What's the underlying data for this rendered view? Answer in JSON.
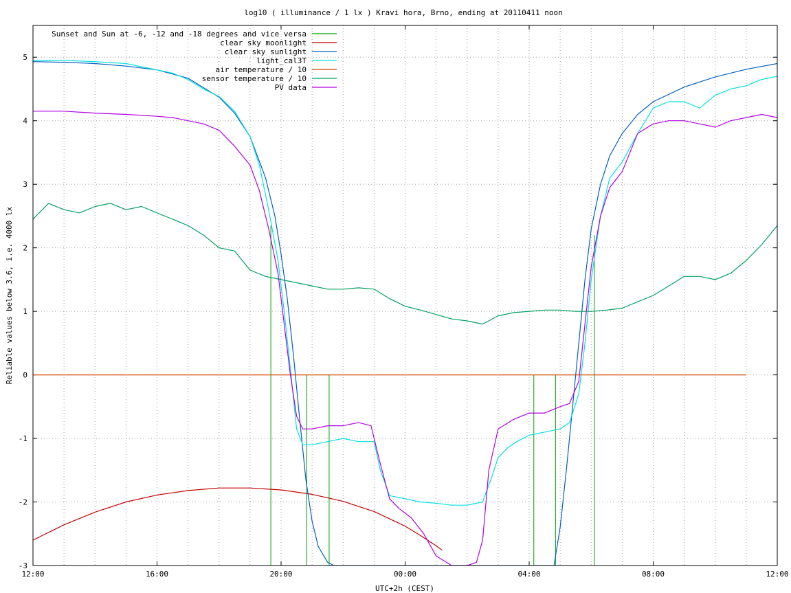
{
  "chart_data": {
    "type": "line",
    "title": "log10 ( illuminance / 1 lx ) Kravi hora, Brno, ending at 20110411 noon",
    "xlabel": "UTC+2h (CEST)",
    "ylabel": "Reliable values below 3.6, i.e. 4000 lx",
    "x_unit": "hours since 12:00 of previous day",
    "xlim": [
      0,
      24
    ],
    "ylim": [
      -3,
      5.5
    ],
    "x_ticks": [
      {
        "value": 0,
        "label": "12:00"
      },
      {
        "value": 4,
        "label": "16:00"
      },
      {
        "value": 8,
        "label": "20:00"
      },
      {
        "value": 12,
        "label": "00:00"
      },
      {
        "value": 16,
        "label": "04:00"
      },
      {
        "value": 20,
        "label": "08:00"
      },
      {
        "value": 24,
        "label": "12:00"
      }
    ],
    "y_ticks": [
      {
        "value": -3,
        "label": "-3"
      },
      {
        "value": -2,
        "label": "-2"
      },
      {
        "value": -1,
        "label": "-1"
      },
      {
        "value": 0,
        "label": "0"
      },
      {
        "value": 1,
        "label": "1"
      },
      {
        "value": 2,
        "label": "2"
      },
      {
        "value": 3,
        "label": "3"
      },
      {
        "value": 4,
        "label": "4"
      },
      {
        "value": 5,
        "label": "5"
      }
    ],
    "grid": true,
    "legend_position": "top-left",
    "series": [
      {
        "name": "Sunset and Sun at -6, -12 and -18 degrees and vice versa",
        "color": "#00a000",
        "style": "impulses",
        "x": [
          7.67,
          8.83,
          9.55,
          16.15,
          16.85,
          18.1
        ],
        "y": [
          2.35,
          0,
          0,
          0,
          0,
          2.2
        ]
      },
      {
        "name": "clear sky moonlight",
        "color": "#c00000",
        "x": [
          0,
          1,
          2,
          3,
          4,
          5,
          6,
          7,
          8,
          9,
          10,
          11,
          12,
          12.5,
          13,
          13.2
        ],
        "y": [
          -2.6,
          -2.36,
          -2.16,
          -2.0,
          -1.89,
          -1.82,
          -1.78,
          -1.78,
          -1.81,
          -1.88,
          -1.99,
          -2.15,
          -2.38,
          -2.53,
          -2.69,
          -2.76
        ]
      },
      {
        "name": "clear sky sunlight",
        "color": "#0060c0",
        "x": [
          0,
          1,
          2,
          3,
          4,
          5,
          6,
          6.5,
          7,
          7.5,
          7.8,
          8.0,
          8.2,
          8.4,
          8.6,
          8.8,
          9.0,
          9.2,
          9.5,
          9.7,
          16.8,
          17.0,
          17.2,
          17.4,
          17.6,
          17.8,
          18.0,
          18.3,
          18.6,
          19,
          19.5,
          20,
          21,
          22,
          23,
          24
        ],
        "y": [
          4.93,
          4.92,
          4.9,
          4.86,
          4.8,
          4.67,
          4.37,
          4.12,
          3.75,
          3.1,
          2.5,
          1.9,
          1.2,
          0.3,
          -0.7,
          -1.65,
          -2.3,
          -2.7,
          -2.95,
          -3.0,
          -3.0,
          -2.4,
          -1.5,
          -0.5,
          0.5,
          1.5,
          2.3,
          3.0,
          3.45,
          3.8,
          4.1,
          4.3,
          4.53,
          4.69,
          4.81,
          4.9
        ]
      },
      {
        "name": "light_cal3T",
        "color": "#00e0e0",
        "x": [
          0,
          0.5,
          1,
          2,
          3,
          4,
          4.5,
          5,
          5.5,
          6,
          6.5,
          7,
          7.3,
          7.6,
          7.9,
          8.1,
          8.3,
          8.5,
          8.7,
          9.0,
          9.5,
          10,
          10.5,
          11,
          11.2,
          11.5,
          12,
          12.5,
          13,
          13.5,
          14,
          14.5,
          14.8,
          15,
          15.3,
          15.6,
          16,
          16.5,
          17,
          17.3,
          17.6,
          17.8,
          18,
          18.3,
          18.6,
          19,
          19.5,
          20,
          20.5,
          21,
          21.5,
          22,
          22.5,
          23,
          23.5,
          24
        ],
        "y": [
          4.95,
          4.95,
          4.95,
          4.93,
          4.9,
          4.8,
          4.75,
          4.65,
          4.5,
          4.38,
          4.15,
          3.75,
          3.3,
          2.6,
          1.8,
          1.0,
          0.1,
          -0.85,
          -1.1,
          -1.1,
          -1.05,
          -1.0,
          -1.05,
          -1.05,
          -1.5,
          -1.9,
          -1.95,
          -2.0,
          -2.02,
          -2.05,
          -2.05,
          -2.0,
          -1.6,
          -1.3,
          -1.15,
          -1.05,
          -0.95,
          -0.9,
          -0.85,
          -0.75,
          -0.3,
          0.5,
          1.5,
          2.5,
          3.1,
          3.35,
          3.8,
          4.2,
          4.3,
          4.3,
          4.2,
          4.4,
          4.5,
          4.55,
          4.65,
          4.7
        ]
      },
      {
        "name": "air temperature / 10",
        "color": "#d04000",
        "x": [
          0,
          23
        ],
        "y": [
          0,
          0
        ]
      },
      {
        "name": "sensor temperature / 10",
        "color": "#00a060",
        "x": [
          0,
          0.5,
          1,
          1.5,
          2,
          2.5,
          3,
          3.5,
          4,
          4.5,
          5,
          5.5,
          6,
          6.5,
          7,
          7.5,
          8,
          8.5,
          9,
          9.5,
          10,
          10.5,
          11,
          11.5,
          12,
          12.5,
          13,
          13.5,
          14,
          14.5,
          15,
          15.5,
          16,
          16.5,
          17,
          17.5,
          18,
          18.5,
          19,
          19.5,
          20,
          20.5,
          21,
          21.5,
          22,
          22.5,
          23,
          23.5,
          24
        ],
        "y": [
          2.45,
          2.7,
          2.6,
          2.55,
          2.65,
          2.7,
          2.6,
          2.65,
          2.55,
          2.45,
          2.35,
          2.2,
          2.0,
          1.95,
          1.65,
          1.55,
          1.5,
          1.45,
          1.4,
          1.35,
          1.35,
          1.37,
          1.35,
          1.2,
          1.08,
          1.02,
          0.95,
          0.88,
          0.85,
          0.8,
          0.93,
          0.98,
          1.0,
          1.02,
          1.02,
          1.0,
          1.0,
          1.02,
          1.05,
          1.15,
          1.25,
          1.4,
          1.55,
          1.55,
          1.5,
          1.6,
          1.8,
          2.05,
          2.35
        ]
      },
      {
        "name": "PV data",
        "color": "#b000e0",
        "x": [
          0,
          0.5,
          1,
          2,
          3,
          4,
          4.5,
          5,
          5.5,
          6,
          6.5,
          7,
          7.3,
          7.6,
          7.9,
          8.1,
          8.3,
          8.5,
          8.7,
          9.0,
          9.5,
          10,
          10.5,
          10.9,
          11.2,
          11.5,
          11.8,
          12.2,
          12.6,
          13.0,
          13.5,
          13.8,
          14.0,
          14.3,
          14.5,
          14.7,
          15.0,
          15.5,
          16,
          16.5,
          17,
          17.3,
          17.6,
          17.8,
          18,
          18.3,
          18.6,
          19,
          19.5,
          20,
          20.5,
          21,
          21.5,
          22,
          22.5,
          23,
          23.5,
          24
        ],
        "y": [
          4.15,
          4.15,
          4.15,
          4.12,
          4.1,
          4.07,
          4.05,
          4.0,
          3.95,
          3.85,
          3.6,
          3.3,
          2.9,
          2.3,
          1.6,
          0.8,
          0.0,
          -0.65,
          -0.85,
          -0.85,
          -0.8,
          -0.8,
          -0.75,
          -0.8,
          -1.4,
          -1.95,
          -2.1,
          -2.25,
          -2.5,
          -2.85,
          -3.0,
          -3.0,
          -3.0,
          -2.95,
          -2.6,
          -1.5,
          -0.85,
          -0.7,
          -0.6,
          -0.6,
          -0.5,
          -0.45,
          -0.1,
          0.8,
          1.7,
          2.5,
          2.95,
          3.2,
          3.8,
          3.95,
          4.0,
          4.0,
          3.95,
          3.9,
          4.0,
          4.05,
          4.1,
          4.05
        ]
      }
    ]
  }
}
